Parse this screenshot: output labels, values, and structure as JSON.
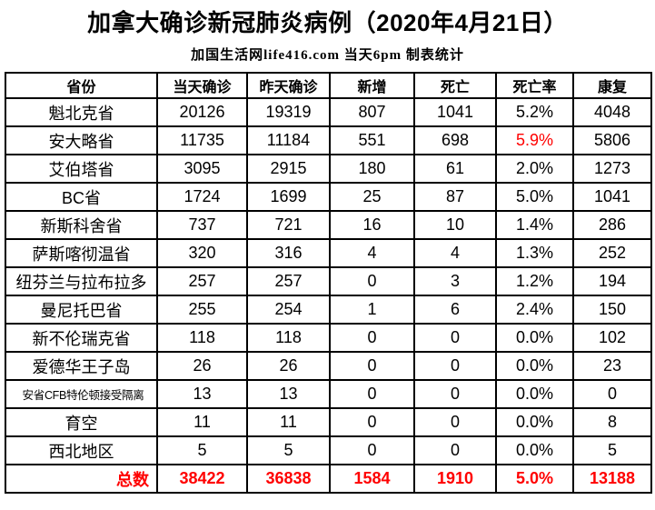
{
  "title": "加拿大确诊新冠肺炎病例（2020年4月21日）",
  "subtitle": "加国生活网life416.com 当天6pm 制表统计",
  "colors": {
    "highlight_red": "#ff0000",
    "text": "#000000",
    "border": "#000000",
    "background": "#ffffff"
  },
  "chart_data": {
    "type": "table",
    "title": "加拿大确诊新冠肺炎病例（2020年4月21日）",
    "subtitle": "加国生活网life416.com 当天6pm 制表统计",
    "columns": [
      {
        "key": "province",
        "label": "省份"
      },
      {
        "key": "today",
        "label": "当天确诊"
      },
      {
        "key": "yesterday",
        "label": "昨天确诊"
      },
      {
        "key": "new_cases",
        "label": "新增"
      },
      {
        "key": "deaths",
        "label": "死亡"
      },
      {
        "key": "death_rate",
        "label": "死亡率"
      },
      {
        "key": "recovered",
        "label": "康复"
      }
    ],
    "rows": [
      {
        "province": "魁北克省",
        "today": "20126",
        "yesterday": "19319",
        "new_cases": "807",
        "deaths": "1041",
        "death_rate": "5.2%",
        "recovered": "4048",
        "death_rate_style": "normal",
        "small_label": false
      },
      {
        "province": "安大略省",
        "today": "11735",
        "yesterday": "11184",
        "new_cases": "551",
        "deaths": "698",
        "death_rate": "5.9%",
        "recovered": "5806",
        "death_rate_style": "red-bold",
        "small_label": false
      },
      {
        "province": "艾伯塔省",
        "today": "3095",
        "yesterday": "2915",
        "new_cases": "180",
        "deaths": "61",
        "death_rate": "2.0%",
        "recovered": "1273",
        "death_rate_style": "bold",
        "small_label": false
      },
      {
        "province": "BC省",
        "today": "1724",
        "yesterday": "1699",
        "new_cases": "25",
        "deaths": "87",
        "death_rate": "5.0%",
        "recovered": "1041",
        "death_rate_style": "bold",
        "small_label": false
      },
      {
        "province": "新斯科舍省",
        "today": "737",
        "yesterday": "721",
        "new_cases": "16",
        "deaths": "10",
        "death_rate": "1.4%",
        "recovered": "286",
        "death_rate_style": "bold",
        "small_label": false
      },
      {
        "province": "萨斯喀彻温省",
        "today": "320",
        "yesterday": "316",
        "new_cases": "4",
        "deaths": "4",
        "death_rate": "1.3%",
        "recovered": "252",
        "death_rate_style": "bold",
        "small_label": false
      },
      {
        "province": "纽芬兰与拉布拉多",
        "today": "257",
        "yesterday": "257",
        "new_cases": "0",
        "deaths": "3",
        "death_rate": "1.2%",
        "recovered": "194",
        "death_rate_style": "bold",
        "small_label": false
      },
      {
        "province": "曼尼托巴省",
        "today": "255",
        "yesterday": "254",
        "new_cases": "1",
        "deaths": "6",
        "death_rate": "2.4%",
        "recovered": "150",
        "death_rate_style": "bold",
        "small_label": false
      },
      {
        "province": "新不伦瑞克省",
        "today": "118",
        "yesterday": "118",
        "new_cases": "0",
        "deaths": "0",
        "death_rate": "0.0%",
        "recovered": "102",
        "death_rate_style": "bold",
        "small_label": false
      },
      {
        "province": "爱德华王子岛",
        "today": "26",
        "yesterday": "26",
        "new_cases": "0",
        "deaths": "0",
        "death_rate": "0.0%",
        "recovered": "23",
        "death_rate_style": "bold",
        "small_label": false
      },
      {
        "province": "安省CFB特伦顿接受隔离",
        "today": "13",
        "yesterday": "13",
        "new_cases": "0",
        "deaths": "0",
        "death_rate": "0.0%",
        "recovered": "0",
        "death_rate_style": "bold",
        "small_label": true
      },
      {
        "province": "育空",
        "today": "11",
        "yesterday": "11",
        "new_cases": "0",
        "deaths": "0",
        "death_rate": "0.0%",
        "recovered": "8",
        "death_rate_style": "bold",
        "small_label": false
      },
      {
        "province": "西北地区",
        "today": "5",
        "yesterday": "5",
        "new_cases": "0",
        "deaths": "0",
        "death_rate": "0.0%",
        "recovered": "5",
        "death_rate_style": "bold",
        "small_label": false
      }
    ],
    "total": {
      "province": "总数",
      "today": "38422",
      "yesterday": "36838",
      "new_cases": "1584",
      "deaths": "1910",
      "death_rate": "5.0%",
      "recovered": "13188"
    }
  }
}
